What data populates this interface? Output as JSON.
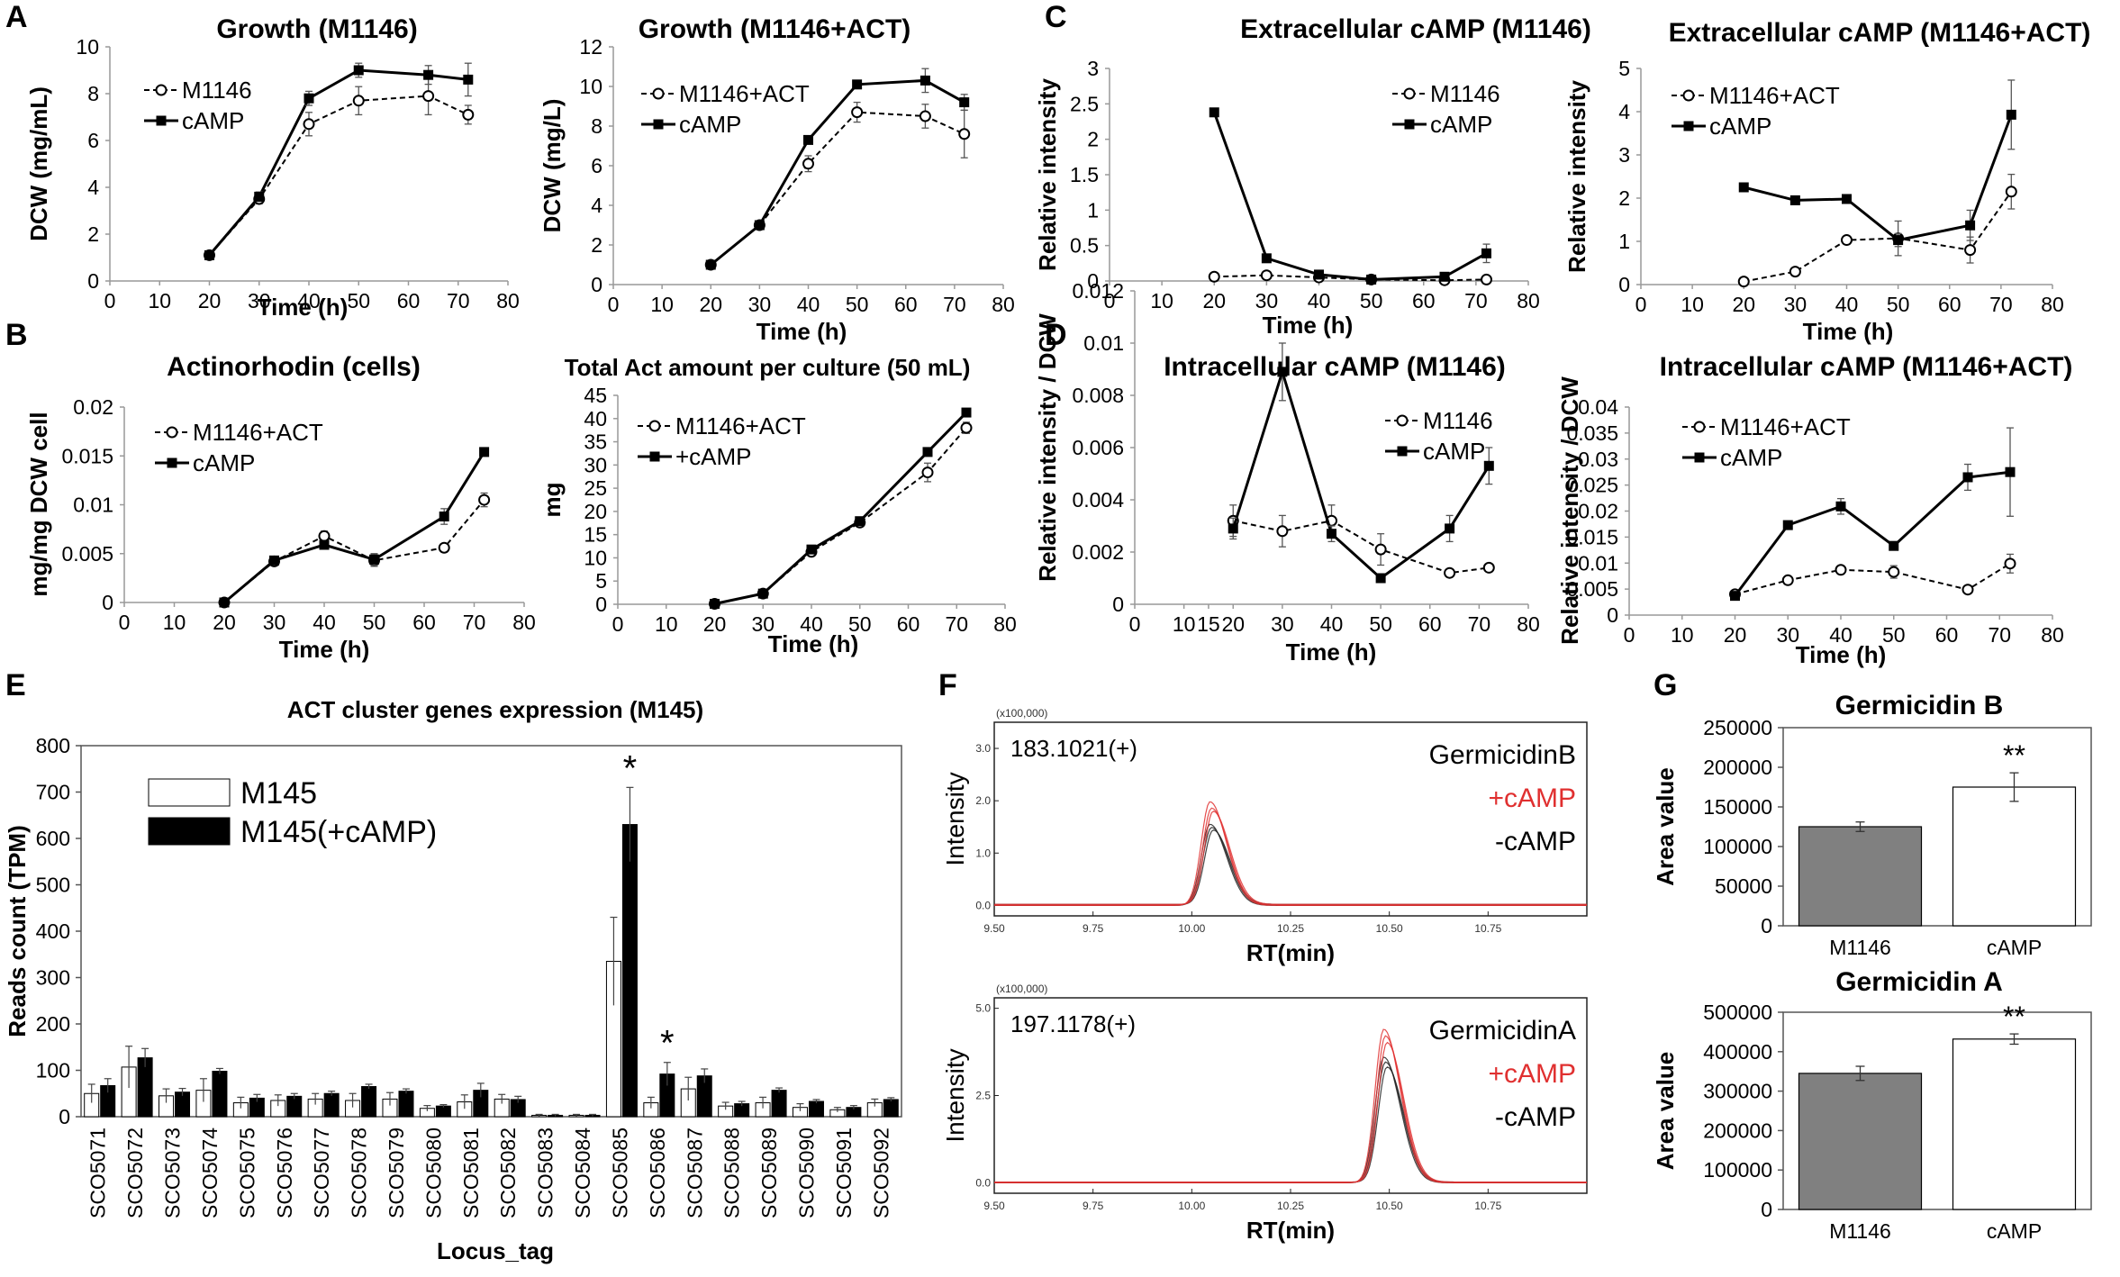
{
  "figure": {
    "panel_letters": [
      "A",
      "B",
      "C",
      "D",
      "E",
      "F",
      "G"
    ]
  },
  "chart_data": [
    {
      "id": "A1",
      "panel": "A",
      "type": "line",
      "title": "Growth (M1146)",
      "xlabel": "Time (h)",
      "ylabel": "DCW (mg/mL)",
      "xlim": [
        0,
        80
      ],
      "xticks": [
        0,
        10,
        20,
        30,
        40,
        50,
        60,
        70,
        80
      ],
      "ylim": [
        0,
        10
      ],
      "yticks": [
        0,
        2,
        4,
        6,
        8,
        10
      ],
      "ytick_labels": [
        "0",
        "2",
        "4",
        "6",
        "8",
        "10"
      ],
      "x": [
        20,
        30,
        40,
        50,
        64,
        72
      ],
      "series": [
        {
          "name": "M1146",
          "style": "open-dashed",
          "values": [
            1.1,
            3.5,
            6.7,
            7.7,
            7.9,
            7.1
          ],
          "errors": [
            0.1,
            0.2,
            0.5,
            0.6,
            0.8,
            0.4
          ]
        },
        {
          "name": "cAMP",
          "style": "filled-solid",
          "values": [
            1.1,
            3.6,
            7.8,
            9.0,
            8.8,
            8.6
          ],
          "errors": [
            0.1,
            0.2,
            0.3,
            0.3,
            0.4,
            0.7
          ]
        }
      ]
    },
    {
      "id": "A2",
      "panel": "",
      "type": "line",
      "title": "Growth (M1146+ACT)",
      "xlabel": "Time (h)",
      "ylabel": "DCW (mg/L)",
      "xlim": [
        0,
        80
      ],
      "xticks": [
        0,
        10,
        20,
        30,
        40,
        50,
        60,
        70,
        80
      ],
      "ylim": [
        0,
        12
      ],
      "yticks": [
        0,
        2,
        4,
        6,
        8,
        10,
        12
      ],
      "ytick_labels": [
        "0",
        "2",
        "4",
        "6",
        "8",
        "10",
        "12"
      ],
      "x": [
        20,
        30,
        40,
        50,
        64,
        72
      ],
      "series": [
        {
          "name": "M1146+ACT",
          "style": "open-dashed",
          "values": [
            1.0,
            3.0,
            6.1,
            8.7,
            8.5,
            7.6
          ],
          "errors": [
            0.1,
            0.1,
            0.4,
            0.5,
            0.6,
            1.2
          ]
        },
        {
          "name": "cAMP",
          "style": "filled-solid",
          "values": [
            1.0,
            3.0,
            7.3,
            10.1,
            10.3,
            9.2
          ],
          "errors": [
            0.1,
            0.1,
            0.2,
            0.1,
            0.6,
            0.4
          ]
        }
      ]
    },
    {
      "id": "B1",
      "panel": "B",
      "type": "line",
      "title": "Actinorhodin (cells)",
      "xlabel": "Time (h)",
      "ylabel": "mg/mg DCW cell",
      "xlim": [
        0,
        80
      ],
      "xticks": [
        0,
        10,
        20,
        30,
        40,
        50,
        60,
        70,
        80
      ],
      "ylim": [
        0,
        0.02
      ],
      "yticks": [
        0,
        0.005,
        0.01,
        0.015,
        0.02
      ],
      "ytick_labels": [
        "0",
        "0.005",
        "0.01",
        "0.015",
        "0.02"
      ],
      "x": [
        20,
        30,
        40,
        50,
        64,
        72
      ],
      "series": [
        {
          "name": "M1146+ACT",
          "style": "open-dashed",
          "values": [
            0,
            0.0042,
            0.0068,
            0.0043,
            0.0056,
            0.0105
          ],
          "errors": [
            0,
            0.0002,
            0.0005,
            0.0006,
            0.0002,
            0.0007
          ]
        },
        {
          "name": "cAMP",
          "style": "filled-solid",
          "values": [
            0,
            0.0043,
            0.0059,
            0.0044,
            0.0088,
            0.0154
          ],
          "errors": [
            0,
            0.0002,
            0.0003,
            0.0006,
            0.0008,
            0.0001
          ]
        }
      ]
    },
    {
      "id": "B2",
      "panel": "",
      "type": "line",
      "title": "Total Act amount per culture (50 mL)",
      "xlabel": "Time (h)",
      "ylabel": "mg",
      "xlim": [
        0,
        80
      ],
      "xticks": [
        0,
        10,
        20,
        30,
        40,
        50,
        60,
        70,
        80
      ],
      "ylim": [
        0,
        45
      ],
      "yticks": [
        0,
        5,
        10,
        15,
        20,
        25,
        30,
        35,
        40,
        45
      ],
      "ytick_labels": [
        "0",
        "5",
        "10",
        "15",
        "20",
        "25",
        "30",
        "35",
        "40",
        "45"
      ],
      "x": [
        20,
        30,
        40,
        50,
        64,
        72
      ],
      "series": [
        {
          "name": "M1146+ACT",
          "style": "open-dashed",
          "values": [
            0.1,
            2.3,
            11.3,
            17.6,
            28.4,
            38.0
          ],
          "errors": [
            0.1,
            0.2,
            0.6,
            0.8,
            2.0,
            1.2
          ]
        },
        {
          "name": "+cAMP",
          "style": "filled-solid",
          "values": [
            0.1,
            2.3,
            11.8,
            17.9,
            32.8,
            41.3
          ],
          "errors": [
            0.1,
            0.2,
            0.5,
            0.5,
            0.6,
            0.3
          ]
        }
      ]
    },
    {
      "id": "C1",
      "panel": "C",
      "type": "line",
      "title": "Extracellular cAMP (M1146)",
      "xlabel": "Time (h)",
      "ylabel": "Relative intensity",
      "xlim": [
        0,
        80
      ],
      "xticks": [
        0,
        10,
        20,
        30,
        40,
        50,
        60,
        70,
        80
      ],
      "ylim": [
        0,
        3
      ],
      "yticks": [
        0,
        0.5,
        1,
        1.5,
        2,
        2.5,
        3
      ],
      "ytick_labels": [
        "0",
        "0.5",
        "1",
        "1.5",
        "2",
        "2.5",
        "3"
      ],
      "x": [
        20,
        30,
        40,
        50,
        64,
        72
      ],
      "series": [
        {
          "name": "M1146",
          "style": "open-dashed",
          "values": [
            0.06,
            0.08,
            0.05,
            0.02,
            0.01,
            0.02
          ],
          "errors": [
            0.01,
            0.01,
            0.01,
            0.01,
            0.01,
            0.01
          ]
        },
        {
          "name": "cAMP",
          "style": "filled-solid",
          "values": [
            2.38,
            0.32,
            0.09,
            0.02,
            0.06,
            0.39
          ],
          "errors": [
            0.02,
            0.02,
            0.02,
            0.01,
            0.03,
            0.13
          ]
        }
      ]
    },
    {
      "id": "C2",
      "panel": "",
      "type": "line",
      "title": "Extracellular cAMP (M1146+ACT)",
      "xlabel": "Time (h)",
      "ylabel": "Relative intensity",
      "xlim": [
        0,
        80
      ],
      "xticks": [
        0,
        10,
        20,
        30,
        40,
        50,
        60,
        70,
        80
      ],
      "ylim": [
        0,
        5
      ],
      "yticks": [
        0,
        1,
        2,
        3,
        4,
        5
      ],
      "ytick_labels": [
        "0",
        "1",
        "2",
        "3",
        "4",
        "5"
      ],
      "x": [
        20,
        30,
        40,
        50,
        64,
        72
      ],
      "series": [
        {
          "name": "M1146+ACT",
          "style": "open-dashed",
          "values": [
            0.07,
            0.3,
            1.03,
            1.07,
            0.8,
            2.15
          ],
          "errors": [
            0.02,
            0.03,
            0.06,
            0.4,
            0.3,
            0.4
          ]
        },
        {
          "name": "cAMP",
          "style": "filled-solid",
          "values": [
            2.25,
            1.95,
            1.98,
            1.03,
            1.37,
            3.93
          ],
          "errors": [
            0.05,
            0.05,
            0.07,
            0.15,
            0.35,
            0.8
          ]
        }
      ]
    },
    {
      "id": "D1",
      "panel": "D",
      "type": "line",
      "title": "Intracellular cAMP (M1146)",
      "xlabel": "Time (h)",
      "ylabel": "Relative intensity / DCW",
      "xlim": [
        0,
        80
      ],
      "xticks": [
        0,
        10,
        15,
        20,
        30,
        40,
        50,
        60,
        70,
        80
      ],
      "xtick_labels": [
        "0",
        "10",
        "15",
        "20",
        "30",
        "40",
        "50",
        "60",
        "70",
        "80"
      ],
      "ylim": [
        0,
        0.012
      ],
      "yticks": [
        0,
        0.002,
        0.004,
        0.006,
        0.008,
        0.01,
        0.012
      ],
      "ytick_labels": [
        "0",
        "0.002",
        "0.004",
        "0.006",
        "0.008",
        "0.01",
        "0.012"
      ],
      "x": [
        20,
        30,
        40,
        50,
        64,
        72
      ],
      "series": [
        {
          "name": "M1146",
          "style": "open-dashed",
          "values": [
            0.0032,
            0.0028,
            0.0032,
            0.0021,
            0.0012,
            0.0014
          ],
          "errors": [
            0.0006,
            0.0006,
            0.0006,
            0.0006,
            0.0001,
            0.0001
          ]
        },
        {
          "name": "cAMP",
          "style": "filled-solid",
          "values": [
            0.0029,
            0.0089,
            0.0027,
            0.001,
            0.0029,
            0.0053
          ],
          "errors": [
            0.0004,
            0.0011,
            0.0003,
            0.0001,
            0.0005,
            0.0007
          ]
        }
      ]
    },
    {
      "id": "D2",
      "panel": "",
      "type": "line",
      "title": "Intracellular cAMP (M1146+ACT)",
      "xlabel": "Time (h)",
      "ylabel": "Relative intensity / DCW",
      "xlim": [
        0,
        80
      ],
      "xticks": [
        0,
        10,
        20,
        30,
        40,
        50,
        60,
        70,
        80
      ],
      "ylim": [
        0,
        0.04
      ],
      "yticks": [
        0,
        0.005,
        0.01,
        0.015,
        0.02,
        0.025,
        0.03,
        0.035,
        0.04
      ],
      "ytick_labels": [
        "0",
        "0.005",
        "0.01",
        "0.015",
        "0.02",
        "0.025",
        "0.03",
        "0.035",
        "0.04"
      ],
      "x": [
        20,
        30,
        40,
        50,
        64,
        72
      ],
      "series": [
        {
          "name": "M1146+ACT",
          "style": "open-dashed",
          "values": [
            0.004,
            0.0067,
            0.0087,
            0.0083,
            0.0049,
            0.0099
          ],
          "errors": [
            0.0003,
            0.0005,
            0.0008,
            0.0012,
            0.0004,
            0.0018
          ]
        },
        {
          "name": "cAMP",
          "style": "filled-solid",
          "values": [
            0.0037,
            0.0173,
            0.0209,
            0.0133,
            0.0265,
            0.0275
          ],
          "errors": [
            0.0003,
            0.0005,
            0.0015,
            0.0008,
            0.0025,
            0.0085
          ]
        }
      ]
    },
    {
      "id": "E",
      "panel": "E",
      "type": "bar",
      "title": "ACT cluster genes expression (M145)",
      "xlabel": "Locus_tag",
      "ylabel": "Reads count (TPM)",
      "ylim": [
        0,
        800
      ],
      "yticks": [
        0,
        100,
        200,
        300,
        400,
        500,
        600,
        700,
        800
      ],
      "ytick_labels": [
        "0",
        "100",
        "200",
        "300",
        "400",
        "500",
        "600",
        "700",
        "800"
      ],
      "categories": [
        "SCO5071",
        "SCO5072",
        "SCO5073",
        "SCO5074",
        "SCO5075",
        "SCO5076",
        "SCO5077",
        "SCO5078",
        "SCO5079",
        "SCO5080",
        "SCO5081",
        "SCO5082",
        "SCO5083",
        "SCO5084",
        "SCO5085",
        "SCO5086",
        "SCO5087",
        "SCO5088",
        "SCO5089",
        "SCO5090",
        "SCO5091",
        "SCO5092"
      ],
      "series": [
        {
          "name": "M145",
          "fill": "#ffffff",
          "values": [
            50,
            107,
            45,
            57,
            30,
            35,
            38,
            35,
            38,
            18,
            32,
            38,
            3,
            3,
            335,
            30,
            60,
            23,
            30,
            20,
            15,
            30
          ],
          "errors": [
            20,
            45,
            15,
            25,
            12,
            12,
            12,
            15,
            14,
            6,
            15,
            10,
            2,
            2,
            95,
            12,
            25,
            8,
            12,
            8,
            5,
            8
          ]
        },
        {
          "name": "M145(+cAMP)",
          "fill": "#000000",
          "values": [
            67,
            127,
            53,
            98,
            40,
            44,
            50,
            65,
            55,
            23,
            57,
            37,
            3,
            3,
            630,
            92,
            88,
            28,
            57,
            33,
            20,
            37
          ],
          "errors": [
            15,
            20,
            8,
            6,
            8,
            6,
            5,
            5,
            5,
            3,
            15,
            7,
            2,
            2,
            80,
            25,
            15,
            5,
            5,
            4,
            4,
            4
          ]
        }
      ],
      "significance": [
        {
          "category": "SCO5085",
          "mark": "*"
        },
        {
          "category": "SCO5086",
          "mark": "*"
        }
      ]
    },
    {
      "id": "F1",
      "panel": "F",
      "type": "line",
      "title": "",
      "xlabel": "RT(min)",
      "ylabel": "Intensity",
      "scale_label": "(x100,000)",
      "ion": "183.1021(+)",
      "compound": "GermicidinB",
      "xlim": [
        9.5,
        11.0
      ],
      "xticks": [
        9.5,
        9.75,
        10.0,
        10.25,
        10.5,
        10.75
      ],
      "xtick_labels": [
        "9.50",
        "9.75",
        "10.00",
        "10.25",
        "10.50",
        "10.75"
      ],
      "ylim": [
        -0.2,
        3.5
      ],
      "yticks": [
        0.0,
        1.0,
        2.0,
        3.0
      ],
      "ytick_labels": [
        "0.0",
        "1.0",
        "2.0",
        "3.0"
      ],
      "peak_center": 10.05,
      "series": [
        {
          "name": "+cAMP",
          "color": "#e03030",
          "peak_heights": [
            1.98,
            1.85,
            1.78
          ]
        },
        {
          "name": "-cAMP",
          "color": "#222222",
          "peak_heights": [
            1.55,
            1.48,
            1.42
          ]
        }
      ]
    },
    {
      "id": "F2",
      "panel": "",
      "type": "line",
      "title": "",
      "xlabel": "RT(min)",
      "ylabel": "Intensity",
      "scale_label": "(x100,000)",
      "ion": "197.1178(+)",
      "compound": "GermicidinA",
      "xlim": [
        9.5,
        11.0
      ],
      "xticks": [
        9.5,
        9.75,
        10.0,
        10.25,
        10.5,
        10.75
      ],
      "xtick_labels": [
        "9.50",
        "9.75",
        "10.00",
        "10.25",
        "10.50",
        "10.75"
      ],
      "ylim": [
        -0.3,
        5.3
      ],
      "yticks": [
        0.0,
        2.5,
        5.0
      ],
      "ytick_labels": [
        "0.0",
        "2.5",
        "5.0"
      ],
      "peak_center": 10.49,
      "series": [
        {
          "name": "+cAMP",
          "color": "#e03030",
          "peak_heights": [
            4.4,
            4.2,
            4.0
          ]
        },
        {
          "name": "-cAMP",
          "color": "#222222",
          "peak_heights": [
            3.6,
            3.45,
            3.3
          ]
        }
      ]
    },
    {
      "id": "G1",
      "panel": "G",
      "type": "bar",
      "title": "Germicidin B",
      "xlabel": "",
      "ylabel": "Area value",
      "ylim": [
        0,
        250000
      ],
      "yticks": [
        0,
        50000,
        100000,
        150000,
        200000,
        250000
      ],
      "ytick_labels": [
        "0",
        "50000",
        "100000",
        "150000",
        "200000",
        "250000"
      ],
      "categories": [
        "M1146",
        "cAMP"
      ],
      "values": [
        125000,
        175000
      ],
      "errors": [
        6000,
        18000
      ],
      "fills": [
        "#808080",
        "#ffffff"
      ],
      "significance": [
        {
          "category": "cAMP",
          "mark": "**"
        }
      ]
    },
    {
      "id": "G2",
      "panel": "",
      "type": "bar",
      "title": "Germicidin A",
      "xlabel": "",
      "ylabel": "Area value",
      "ylim": [
        0,
        500000
      ],
      "yticks": [
        0,
        100000,
        200000,
        300000,
        400000,
        500000
      ],
      "ytick_labels": [
        "0",
        "100000",
        "200000",
        "300000",
        "400000",
        "500000"
      ],
      "categories": [
        "M1146",
        "cAMP"
      ],
      "values": [
        345000,
        432000
      ],
      "errors": [
        18000,
        13000
      ],
      "fills": [
        "#808080",
        "#ffffff"
      ],
      "significance": [
        {
          "category": "cAMP",
          "mark": "**"
        }
      ]
    }
  ]
}
